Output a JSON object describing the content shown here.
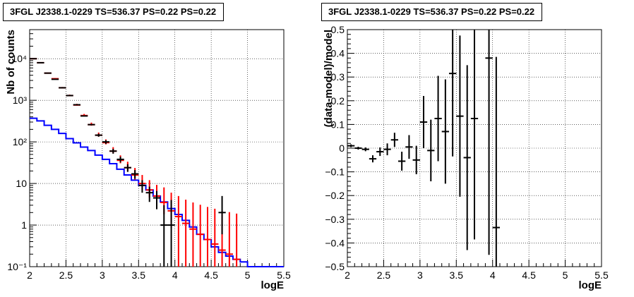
{
  "chart_data": [
    {
      "type": "line",
      "title": "3FGL J2338.1-0229 TS=536.37 PS=0.22 PS=0.22",
      "xlabel": "logE",
      "ylabel": "Nb of counts",
      "y_scale": "log",
      "xlim": [
        2,
        5.5
      ],
      "ylim": [
        0.1,
        50000
      ],
      "grid": true,
      "x_ticks": [
        "2",
        "2.5",
        "3",
        "3.5",
        "4",
        "4.5",
        "5",
        "5.5"
      ],
      "y_ticks": [
        "10⁻¹",
        "1",
        "10",
        "10²",
        "10³",
        "10⁴"
      ],
      "bin_edges": [
        2.0,
        2.1,
        2.2,
        2.3,
        2.4,
        2.5,
        2.6,
        2.7,
        2.8,
        2.9,
        3.0,
        3.1,
        3.2,
        3.3,
        3.4,
        3.5,
        3.6,
        3.7,
        3.8,
        3.9,
        4.0,
        4.1,
        4.2,
        4.3,
        4.4,
        4.5,
        4.6,
        4.7,
        4.8,
        4.9,
        5.0,
        5.1,
        5.2,
        5.3,
        5.4,
        5.5
      ],
      "series": [
        {
          "kind": "data",
          "color": "#000000",
          "x": [
            2.05,
            2.15,
            2.25,
            2.35,
            2.45,
            2.55,
            2.65,
            2.75,
            2.85,
            2.95,
            3.05,
            3.15,
            3.25,
            3.35,
            3.45,
            3.55,
            3.65,
            3.75,
            3.85,
            3.95,
            4.65
          ],
          "y": [
            10000,
            8000,
            4500,
            3200,
            2000,
            1300,
            780,
            420,
            260,
            145,
            100,
            60,
            38,
            24,
            17,
            9,
            6,
            4.5,
            1,
            1,
            2
          ],
          "yerr_low": [
            0,
            0,
            0,
            0,
            0,
            0,
            0,
            0,
            0,
            12,
            10,
            8,
            6,
            5,
            4,
            3,
            2.4,
            2.1,
            0.9,
            0.9,
            1.4
          ],
          "yerr_high": [
            0,
            0,
            0,
            0,
            0,
            0,
            0,
            0,
            0,
            12,
            10,
            8,
            6,
            5,
            4,
            3,
            2.4,
            2.1,
            2,
            3,
            3
          ]
        },
        {
          "kind": "model-points",
          "color": "#ff0000",
          "x": [
            2.05,
            2.15,
            2.25,
            2.35,
            2.45,
            2.55,
            2.65,
            2.75,
            2.85,
            2.95,
            3.05,
            3.15,
            3.25,
            3.35,
            3.45,
            3.55,
            3.65,
            3.75,
            3.85,
            3.95,
            4.05,
            4.15,
            4.25,
            4.35,
            4.45,
            4.55,
            4.65,
            4.75,
            4.85
          ],
          "y": [
            10000,
            8000,
            4500,
            3300,
            2000,
            1300,
            770,
            430,
            260,
            145,
            96,
            60,
            36,
            24,
            16,
            10,
            7,
            5,
            3.5,
            2.2,
            1.6,
            1.1,
            0.8,
            0.6,
            0.45,
            0.35,
            0.25,
            0.2,
            0.15
          ]
        },
        {
          "kind": "model-histogram",
          "color": "#0000ff",
          "values": [
            370,
            320,
            250,
            200,
            160,
            120,
            95,
            75,
            62,
            48,
            38,
            30,
            22,
            16,
            12,
            9,
            7,
            5,
            3.6,
            2.5,
            1.8,
            1.3,
            0.9,
            0.6,
            0.45,
            0.3,
            0.22,
            0.18,
            0.15,
            0.13,
            0.1,
            0.1,
            0.1,
            0.1,
            0.1
          ]
        }
      ]
    },
    {
      "type": "scatter",
      "title": "3FGL J2338.1-0229 TS=536.37 PS=0.22 PS=0.22",
      "xlabel": "logE",
      "ylabel": "(data-model)/model",
      "xlim": [
        2,
        5.5
      ],
      "ylim": [
        -0.5,
        0.5
      ],
      "grid": true,
      "x_ticks": [
        "2",
        "2.5",
        "3",
        "3.5",
        "4",
        "4.5",
        "5",
        "5.5"
      ],
      "y_ticks": [
        "−0.5",
        "−0.4",
        "−0.3",
        "−0.2",
        "−0.1",
        "0",
        "0.1",
        "0.2",
        "0.3",
        "0.4",
        "0.5"
      ],
      "series": [
        {
          "color": "#000000",
          "x": [
            2.05,
            2.15,
            2.25,
            2.35,
            2.45,
            2.55,
            2.65,
            2.75,
            2.85,
            2.95,
            3.05,
            3.15,
            3.25,
            3.35,
            3.45,
            3.55,
            3.65,
            3.75,
            3.95,
            4.05
          ],
          "y": [
            0.01,
            0.0,
            -0.005,
            -0.045,
            -0.015,
            -0.005,
            0.035,
            -0.055,
            0.005,
            -0.05,
            0.11,
            -0.01,
            0.125,
            0.07,
            0.315,
            0.135,
            -0.04,
            0.125,
            0.38,
            -0.335
          ],
          "yerr": [
            0.006,
            0.006,
            0.008,
            0.015,
            0.018,
            0.025,
            0.03,
            0.04,
            0.05,
            0.06,
            0.11,
            0.13,
            0.18,
            0.22,
            0.35,
            0.34,
            0.39,
            0.51,
            0.83,
            0.72
          ]
        }
      ]
    }
  ]
}
